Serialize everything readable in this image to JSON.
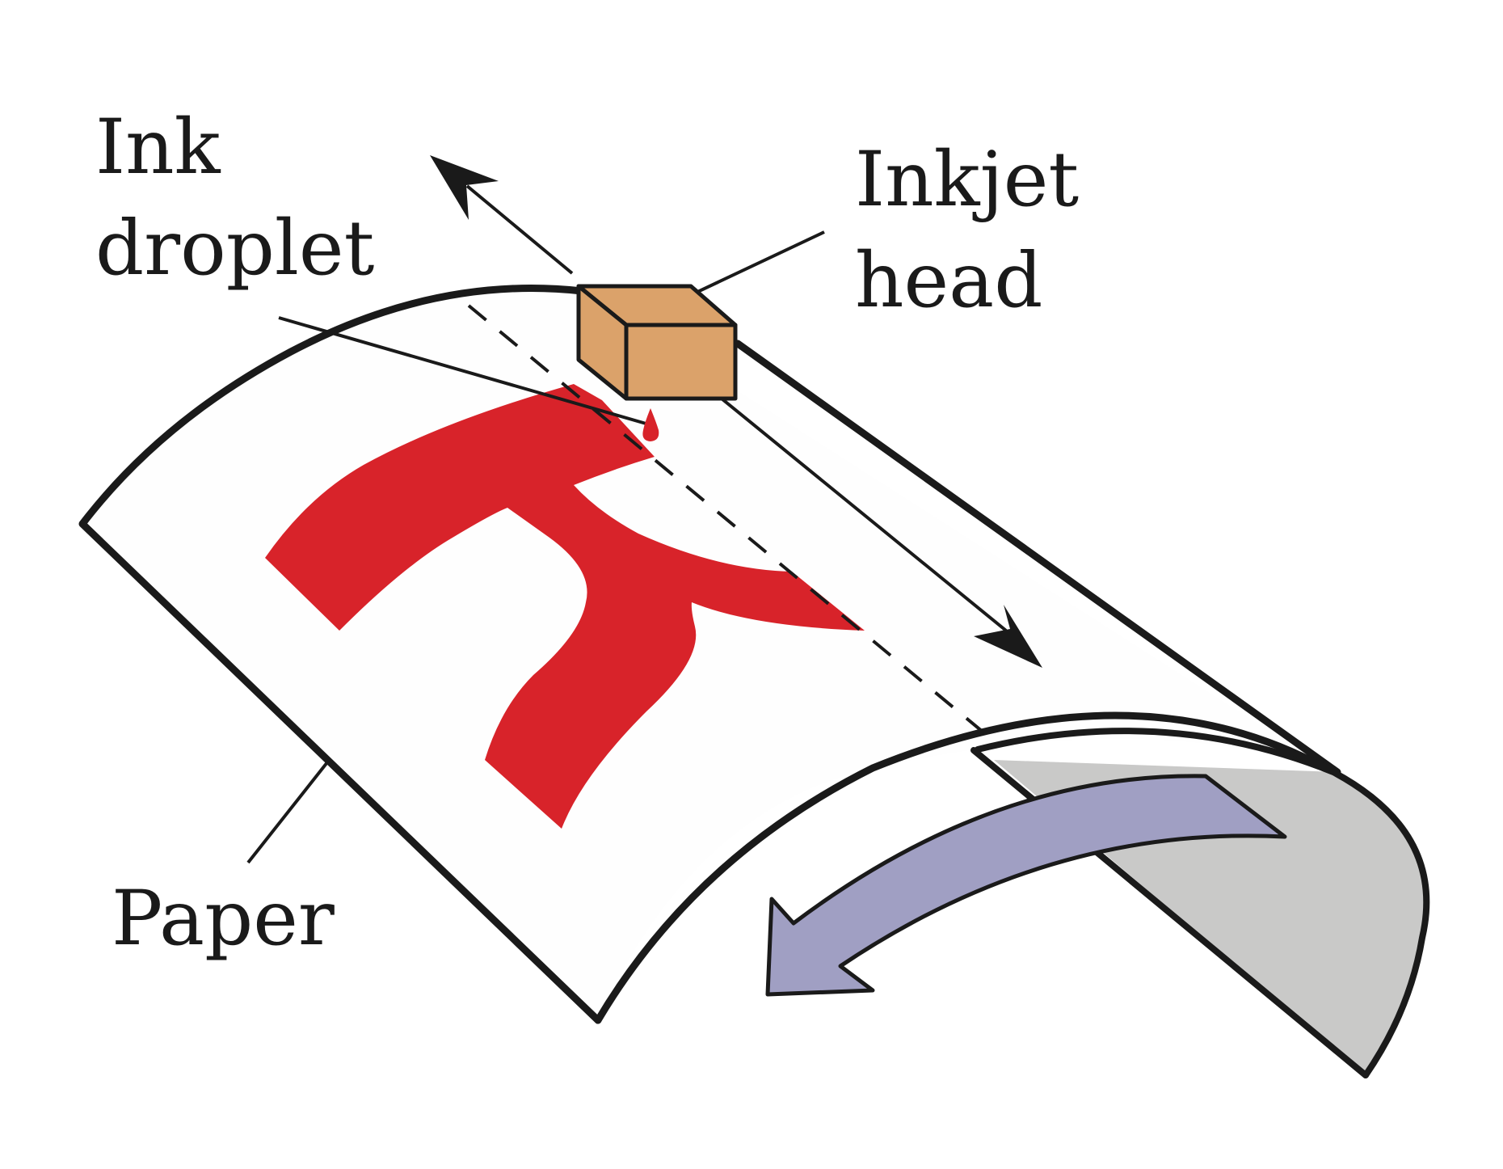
{
  "labels": {
    "ink_droplet_line1": "Ink",
    "ink_droplet_line2": "droplet",
    "inkjet_head_line1": "Inkjet",
    "inkjet_head_line2": "head",
    "paper": "Paper"
  },
  "colors": {
    "background": "#ffffff",
    "outline": "#1a1a1a",
    "paper_face": "#fefefe",
    "paper_underside": "#c9c9c8",
    "printed_glyph": "#d8232a",
    "inkjet_head": "#dba26a",
    "feed_arrow": "#a09fc3",
    "ink_droplet": "#d8232a"
  }
}
